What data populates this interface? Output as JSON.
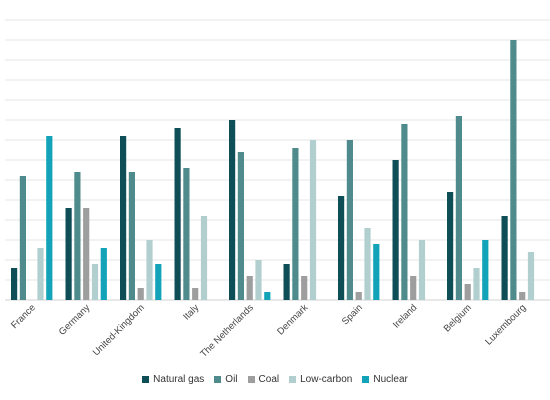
{
  "chart_data": {
    "type": "bar",
    "categories": [
      "France",
      "Germany",
      "United-Kingdom",
      "Italy",
      "The Netherlands",
      "Denmark",
      "Spain",
      "Ireland",
      "Belgium",
      "Luxembourg"
    ],
    "series": [
      {
        "name": "Natural gas",
        "color": "#0e4f57",
        "values": [
          8,
          23,
          41,
          43,
          45,
          9,
          26,
          35,
          27,
          21
        ]
      },
      {
        "name": "Oil",
        "color": "#4f8a8c",
        "values": [
          31,
          32,
          32,
          33,
          37,
          38,
          40,
          44,
          46,
          65
        ]
      },
      {
        "name": "Coal",
        "color": "#9e9e9e",
        "values": [
          0,
          23,
          3,
          3,
          6,
          6,
          2,
          6,
          4,
          2
        ]
      },
      {
        "name": "Low-carbon",
        "color": "#b2cfcf",
        "values": [
          13,
          9,
          15,
          21,
          10,
          40,
          18,
          15,
          8,
          12
        ]
      },
      {
        "name": "Nuclear",
        "color": "#13a3b8",
        "values": [
          41,
          13,
          9,
          0,
          2,
          0,
          14,
          0,
          15,
          0
        ]
      }
    ],
    "ylim": [
      0,
      72
    ],
    "grid": true,
    "legend_position": "bottom"
  }
}
